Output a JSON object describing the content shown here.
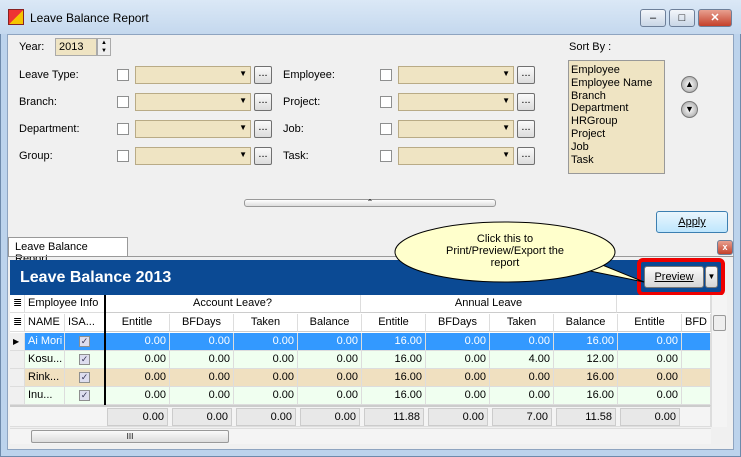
{
  "window": {
    "title": "Leave Balance Report",
    "min": "‒",
    "max": "□",
    "close": "✕"
  },
  "filters": {
    "year_label": "Year:",
    "year_value": "2013",
    "left": [
      {
        "label": "Leave Type:"
      },
      {
        "label": "Branch:"
      },
      {
        "label": "Department:"
      },
      {
        "label": "Group:"
      }
    ],
    "right": [
      {
        "label": "Employee:"
      },
      {
        "label": "Project:"
      },
      {
        "label": "Job:"
      },
      {
        "label": "Task:"
      }
    ],
    "ellipsis": "..."
  },
  "sort": {
    "label": "Sort By :",
    "items": [
      "Employee",
      "Employee Name",
      "Branch",
      "Department",
      "HRGroup",
      "Project",
      "Job",
      "Task"
    ]
  },
  "apply_label": "Apply",
  "tab_label": "Leave Balance Report",
  "report": {
    "title": "Leave Balance 2013",
    "preview_label": "Preview",
    "callout": "Click this to Print/Preview/Export the report"
  },
  "grid": {
    "groups": [
      "Employee Info",
      "Account Leave?",
      "Annual Leave"
    ],
    "columns": [
      "NAME",
      "ISA...",
      "Entitle",
      "BFDays",
      "Taken",
      "Balance",
      "Entitle",
      "BFDays",
      "Taken",
      "Balance",
      "Entitle",
      "BFD"
    ],
    "rows": [
      {
        "name": "Ai Mori",
        "isa": true,
        "vals": [
          "0.00",
          "0.00",
          "0.00",
          "0.00",
          "16.00",
          "0.00",
          "0.00",
          "16.00",
          "0.00"
        ]
      },
      {
        "name": "Kosu...",
        "isa": true,
        "vals": [
          "0.00",
          "0.00",
          "0.00",
          "0.00",
          "16.00",
          "0.00",
          "4.00",
          "12.00",
          "0.00"
        ]
      },
      {
        "name": "Rink...",
        "isa": true,
        "vals": [
          "0.00",
          "0.00",
          "0.00",
          "0.00",
          "16.00",
          "0.00",
          "0.00",
          "16.00",
          "0.00"
        ]
      },
      {
        "name": "Inu...",
        "isa": true,
        "vals": [
          "0.00",
          "0.00",
          "0.00",
          "0.00",
          "16.00",
          "0.00",
          "0.00",
          "16.00",
          "0.00"
        ]
      }
    ],
    "totals": [
      "0.00",
      "0.00",
      "0.00",
      "0.00",
      "11.88",
      "0.00",
      "7.00",
      "11.58",
      "0.00"
    ],
    "row_colors": [
      "#3399ff",
      "#f0fff0",
      "#f0e0c0",
      "#f0fff0"
    ]
  }
}
